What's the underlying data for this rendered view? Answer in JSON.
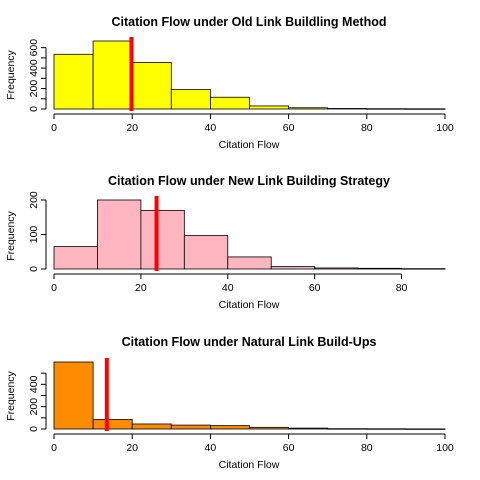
{
  "chart_data": [
    {
      "type": "bar",
      "title": "Citation Flow under Old Link Buildling Method",
      "xlabel": "Citation Flow",
      "ylabel": "Frequency",
      "bin_edges": [
        0,
        10,
        20,
        30,
        40,
        50,
        60,
        70,
        80,
        90,
        100
      ],
      "values": [
        535,
        665,
        455,
        190,
        115,
        30,
        12,
        5,
        3,
        2
      ],
      "xlim": [
        0,
        100
      ],
      "ylim": [
        0,
        665
      ],
      "xticks": [
        0,
        20,
        40,
        60,
        80,
        100
      ],
      "yticks": [
        0,
        100,
        200,
        300,
        400,
        500,
        600
      ],
      "ytick_labels": [
        "0",
        "",
        "200",
        "",
        "400",
        "",
        "600"
      ],
      "bar_color": "#ffff00",
      "reference_line": {
        "x": 19.8,
        "color": "#ff0000"
      },
      "grid": false
    },
    {
      "type": "bar",
      "title": "Citation Flow under New Link Building Strategy",
      "xlabel": "Citation Flow",
      "ylabel": "Frequency",
      "bin_edges": [
        0,
        10,
        20,
        30,
        40,
        50,
        60,
        70,
        80,
        90
      ],
      "values": [
        65,
        200,
        170,
        97,
        35,
        7,
        3,
        2,
        1
      ],
      "xlim": [
        0,
        90
      ],
      "ylim": [
        0,
        200
      ],
      "xticks": [
        0,
        20,
        40,
        60,
        80
      ],
      "yticks": [
        0,
        100,
        200
      ],
      "ytick_labels": [
        "0",
        "100",
        "200"
      ],
      "bar_color": "#ffb6c1",
      "reference_line": {
        "x": 23.6,
        "color": "#ff0000"
      },
      "grid": false
    },
    {
      "type": "bar",
      "title": "Citation Flow under Natural Link Build-Ups",
      "xlabel": "Citation Flow",
      "ylabel": "Frequency",
      "bin_edges": [
        0,
        10,
        20,
        30,
        40,
        50,
        60,
        70,
        80,
        90,
        100
      ],
      "values": [
        600,
        85,
        45,
        35,
        30,
        15,
        8,
        3,
        2,
        1
      ],
      "xlim": [
        0,
        100
      ],
      "ylim": [
        0,
        600
      ],
      "xticks": [
        0,
        20,
        40,
        60,
        80,
        100
      ],
      "yticks": [
        0,
        100,
        200,
        300,
        400,
        500
      ],
      "ytick_labels": [
        "0",
        "",
        "200",
        "",
        "400",
        ""
      ],
      "bar_color": "#ff8c00",
      "reference_line": {
        "x": 13.5,
        "color": "#ff0000"
      },
      "grid": false
    }
  ]
}
